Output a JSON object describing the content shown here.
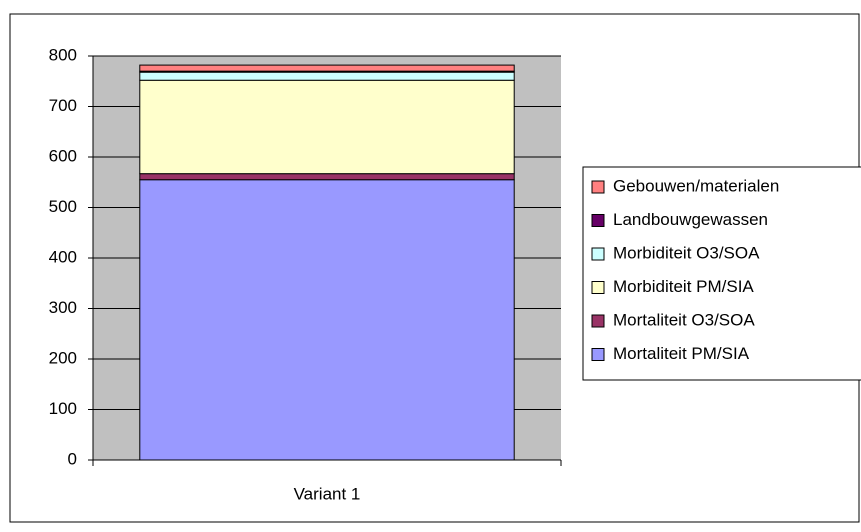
{
  "chart_data": {
    "type": "stacked_bar",
    "categories": [
      "Variant 1"
    ],
    "series": [
      {
        "name": "Mortaliteit PM/SIA",
        "color": "#9999ff",
        "values": [
          555
        ]
      },
      {
        "name": "Mortaliteit O3/SOA",
        "color": "#993366",
        "values": [
          12
        ]
      },
      {
        "name": "Morbiditeit PM/SIA",
        "color": "#ffffcc",
        "values": [
          185
        ]
      },
      {
        "name": "Morbiditeit O3/SOA",
        "color": "#ccffff",
        "values": [
          16
        ]
      },
      {
        "name": "Landbouwgewassen",
        "color": "#660066",
        "values": [
          2
        ]
      },
      {
        "name": "Gebouwen/materialen",
        "color": "#ff8080",
        "values": [
          12
        ]
      }
    ],
    "ylim": [
      0,
      800
    ],
    "yticks": [
      0,
      100,
      200,
      300,
      400,
      500,
      600,
      700,
      800
    ],
    "grid": true,
    "legend": "right"
  }
}
